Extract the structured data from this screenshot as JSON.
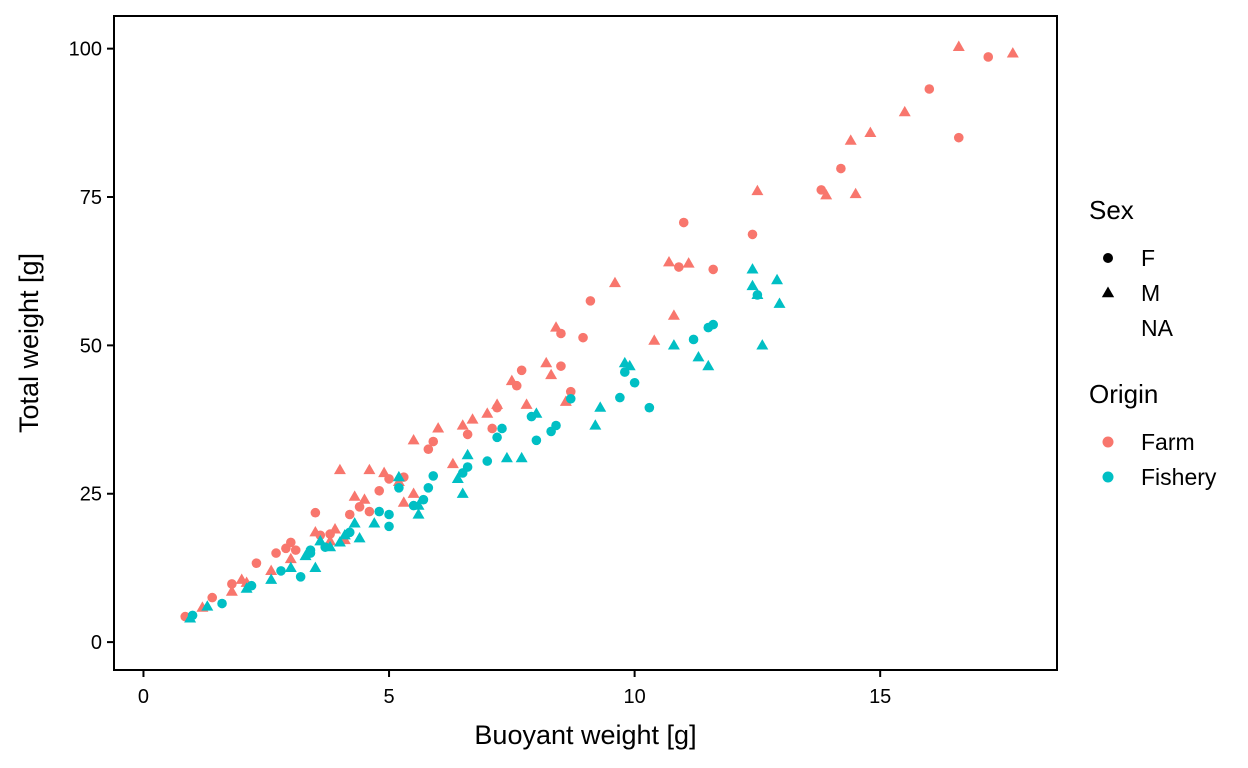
{
  "chart_data": {
    "type": "scatter",
    "xlabel": "Buoyant weight  [g]",
    "ylabel": "Total weight  [g]",
    "xlim": [
      -0.6,
      18.6
    ],
    "ylim": [
      -4.7,
      105.5
    ],
    "x_ticks": [
      0,
      5,
      10,
      15
    ],
    "y_ticks": [
      0,
      25,
      50,
      75,
      100
    ],
    "grid": false,
    "legend": {
      "placement": "right",
      "shape_title": "Sex",
      "shape_entries": [
        {
          "label": "F",
          "shape": "circle"
        },
        {
          "label": "M",
          "shape": "triangle"
        },
        {
          "label": "NA",
          "shape": "none"
        }
      ],
      "color_title": "Origin",
      "color_entries": [
        {
          "label": "Farm",
          "color": "#F8766D"
        },
        {
          "label": "Fishery",
          "color": "#00BFC4"
        }
      ]
    },
    "colors": {
      "Farm": "#F8766D",
      "Fishery": "#00BFC4"
    },
    "series": [
      {
        "origin": "Farm",
        "sex": "F",
        "points": [
          [
            0.85,
            4.3
          ],
          [
            1.4,
            7.5
          ],
          [
            1.8,
            9.8
          ],
          [
            2.3,
            13.3
          ],
          [
            2.7,
            15.0
          ],
          [
            2.9,
            15.8
          ],
          [
            3.0,
            16.8
          ],
          [
            3.5,
            21.8
          ],
          [
            3.6,
            18.0
          ],
          [
            4.2,
            21.5
          ],
          [
            4.4,
            22.8
          ],
          [
            4.6,
            22.0
          ],
          [
            4.8,
            25.5
          ],
          [
            5.0,
            27.5
          ],
          [
            5.3,
            27.8
          ],
          [
            5.8,
            32.5
          ],
          [
            5.9,
            33.8
          ],
          [
            6.6,
            35.0
          ],
          [
            7.1,
            36.0
          ],
          [
            7.2,
            39.5
          ],
          [
            7.6,
            43.2
          ],
          [
            7.7,
            45.8
          ],
          [
            8.5,
            46.5
          ],
          [
            8.5,
            52.0
          ],
          [
            8.7,
            42.2
          ],
          [
            8.95,
            51.3
          ],
          [
            9.1,
            57.5
          ],
          [
            10.9,
            63.2
          ],
          [
            11.0,
            70.7
          ],
          [
            11.6,
            62.8
          ],
          [
            12.4,
            68.7
          ],
          [
            13.8,
            76.2
          ],
          [
            14.2,
            79.8
          ],
          [
            16.0,
            93.2
          ],
          [
            16.6,
            85.0
          ],
          [
            17.2,
            98.6
          ],
          [
            3.1,
            15.5
          ],
          [
            3.8,
            18.2
          ]
        ]
      },
      {
        "origin": "Farm",
        "sex": "M",
        "points": [
          [
            1.2,
            5.8
          ],
          [
            1.8,
            8.5
          ],
          [
            2.0,
            10.5
          ],
          [
            2.6,
            12.0
          ],
          [
            3.0,
            14.0
          ],
          [
            3.5,
            18.5
          ],
          [
            3.9,
            19.0
          ],
          [
            4.0,
            29.0
          ],
          [
            4.3,
            24.5
          ],
          [
            4.6,
            29.0
          ],
          [
            4.9,
            28.5
          ],
          [
            5.2,
            27.0
          ],
          [
            5.5,
            34.0
          ],
          [
            6.0,
            36.0
          ],
          [
            6.3,
            30.0
          ],
          [
            6.5,
            36.5
          ],
          [
            6.7,
            37.5
          ],
          [
            7.0,
            38.5
          ],
          [
            7.5,
            44.0
          ],
          [
            7.8,
            40.0
          ],
          [
            8.2,
            47.0
          ],
          [
            8.3,
            45.0
          ],
          [
            8.4,
            53.0
          ],
          [
            8.6,
            40.5
          ],
          [
            9.6,
            60.5
          ],
          [
            10.4,
            50.8
          ],
          [
            10.7,
            64.0
          ],
          [
            10.8,
            55.0
          ],
          [
            11.1,
            63.8
          ],
          [
            12.5,
            76.0
          ],
          [
            13.9,
            75.3
          ],
          [
            14.4,
            84.5
          ],
          [
            14.5,
            75.5
          ],
          [
            14.8,
            85.8
          ],
          [
            15.5,
            89.3
          ],
          [
            16.6,
            100.3
          ],
          [
            17.7,
            99.2
          ],
          [
            2.1,
            10.0
          ],
          [
            3.8,
            17.0
          ],
          [
            4.5,
            24.0
          ],
          [
            5.3,
            23.5
          ],
          [
            7.2,
            40.0
          ],
          [
            5.5,
            25.0
          ],
          [
            4.1,
            17.2
          ]
        ]
      },
      {
        "origin": "Fishery",
        "sex": "F",
        "points": [
          [
            1.0,
            4.5
          ],
          [
            1.6,
            6.5
          ],
          [
            2.2,
            9.5
          ],
          [
            2.8,
            12.0
          ],
          [
            3.2,
            11.0
          ],
          [
            3.4,
            15.5
          ],
          [
            3.7,
            16.0
          ],
          [
            4.2,
            18.5
          ],
          [
            4.8,
            22.0
          ],
          [
            5.0,
            19.5
          ],
          [
            5.0,
            21.5
          ],
          [
            5.5,
            23.0
          ],
          [
            5.7,
            24.0
          ],
          [
            5.9,
            28.0
          ],
          [
            5.8,
            26.0
          ],
          [
            6.5,
            28.5
          ],
          [
            7.0,
            30.5
          ],
          [
            7.3,
            36.0
          ],
          [
            7.9,
            38.0
          ],
          [
            8.0,
            34.0
          ],
          [
            8.4,
            36.5
          ],
          [
            8.3,
            35.5
          ],
          [
            8.7,
            41.0
          ],
          [
            9.7,
            41.2
          ],
          [
            9.8,
            45.5
          ],
          [
            10.0,
            43.7
          ],
          [
            10.3,
            39.5
          ],
          [
            11.2,
            51.0
          ],
          [
            11.5,
            53.0
          ],
          [
            11.6,
            53.5
          ],
          [
            12.5,
            58.5
          ],
          [
            3.4,
            15.0
          ],
          [
            6.6,
            29.5
          ],
          [
            7.2,
            34.5
          ],
          [
            5.2,
            26.0
          ]
        ]
      },
      {
        "origin": "Fishery",
        "sex": "M",
        "points": [
          [
            0.95,
            4.0
          ],
          [
            1.3,
            6.0
          ],
          [
            2.1,
            9.0
          ],
          [
            2.6,
            10.5
          ],
          [
            3.0,
            12.5
          ],
          [
            3.5,
            12.5
          ],
          [
            3.6,
            17.0
          ],
          [
            3.8,
            16.0
          ],
          [
            4.1,
            18.0
          ],
          [
            4.3,
            20.0
          ],
          [
            4.4,
            17.5
          ],
          [
            4.7,
            20.0
          ],
          [
            5.2,
            27.8
          ],
          [
            5.6,
            21.5
          ],
          [
            6.4,
            27.5
          ],
          [
            6.5,
            25.0
          ],
          [
            6.6,
            31.5
          ],
          [
            7.4,
            31.0
          ],
          [
            7.7,
            31.0
          ],
          [
            8.0,
            38.5
          ],
          [
            9.2,
            36.5
          ],
          [
            9.3,
            39.5
          ],
          [
            9.8,
            47.0
          ],
          [
            9.9,
            46.5
          ],
          [
            10.8,
            50.0
          ],
          [
            11.3,
            48.0
          ],
          [
            11.5,
            46.5
          ],
          [
            12.4,
            62.8
          ],
          [
            12.4,
            60.0
          ],
          [
            12.5,
            58.5
          ],
          [
            12.6,
            50.0
          ],
          [
            12.9,
            61.0
          ],
          [
            12.95,
            57.0
          ],
          [
            3.3,
            14.5
          ],
          [
            4.0,
            16.8
          ],
          [
            5.6,
            23.0
          ]
        ]
      }
    ]
  }
}
